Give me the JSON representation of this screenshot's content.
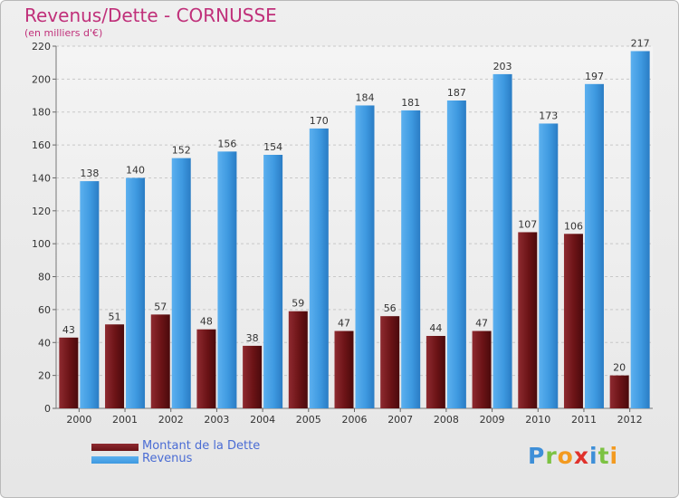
{
  "chart_data": {
    "type": "bar",
    "title": "Revenus/Dette - CORNUSSE",
    "subtitle": "(en milliers d'€)",
    "categories": [
      "2000",
      "2001",
      "2002",
      "2003",
      "2004",
      "2005",
      "2006",
      "2007",
      "2008",
      "2009",
      "2010",
      "2011",
      "2012"
    ],
    "series": [
      {
        "name": "Montant de la Dette",
        "color": "#6b1316",
        "values": [
          43,
          51,
          57,
          48,
          38,
          59,
          47,
          56,
          44,
          47,
          107,
          106,
          20
        ]
      },
      {
        "name": "Revenus",
        "color": "#3e99e0",
        "values": [
          138,
          140,
          152,
          156,
          154,
          170,
          184,
          181,
          187,
          203,
          173,
          197,
          217
        ]
      }
    ],
    "ylim": [
      0,
      220
    ],
    "yticks": [
      0,
      20,
      40,
      60,
      80,
      100,
      120,
      140,
      160,
      180,
      200,
      220
    ],
    "grid": true,
    "legend": "bottom-left",
    "data_labels": true
  },
  "brand": {
    "name": "Proxiti",
    "letters": [
      {
        "char": "P",
        "color": "#3e8fd8"
      },
      {
        "char": "r",
        "color": "#7cc242"
      },
      {
        "char": "o",
        "color": "#f39a1f"
      },
      {
        "char": "x",
        "color": "#e0312b"
      },
      {
        "char": "i",
        "color": "#3e8fd8"
      },
      {
        "char": "t",
        "color": "#7cc242"
      },
      {
        "char": "i",
        "color": "#f39a1f"
      }
    ]
  }
}
